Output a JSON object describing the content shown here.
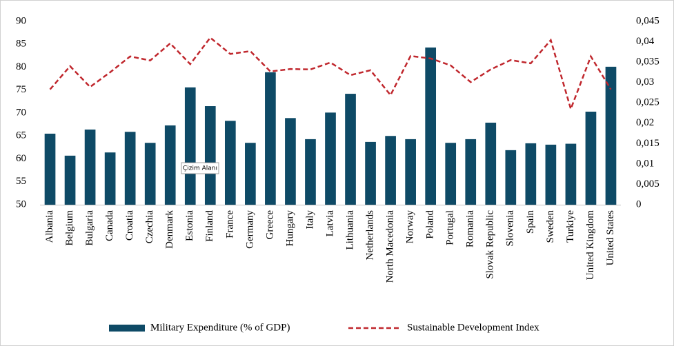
{
  "chart_data": {
    "type": "bar-line",
    "categories": [
      "Albania",
      "Belgium",
      "Bulgaria",
      "Canada",
      "Croatia",
      "Czechia",
      "Denmark",
      "Estonia",
      "Finland",
      "France",
      "Germany",
      "Greece",
      "Hungary",
      "Italy",
      "Latvia",
      "Lithuania",
      "Netherlands",
      "North Macedonia",
      "Norway",
      "Poland",
      "Portugal",
      "Romania",
      "Slovak Republic",
      "Slovenia",
      "Spain",
      "Sweden",
      "Turkiye",
      "United Kingdom",
      "United States"
    ],
    "series": [
      {
        "name": "Military Expenditure (% of GDP)",
        "type": "bar",
        "color": "#0e4a66",
        "values": [
          65.5,
          60.7,
          66.4,
          61.4,
          65.9,
          63.5,
          67.3,
          75.6,
          71.5,
          68.3,
          63.5,
          78.9,
          68.9,
          64.3,
          70.1,
          74.2,
          63.7,
          65.0,
          64.3,
          84.3,
          63.5,
          64.3,
          67.9,
          61.9,
          63.4,
          63.1,
          63.3,
          70.3,
          80.1
        ]
      },
      {
        "name": "Sustainable Development Index",
        "type": "line",
        "axis": "y2",
        "color": "#c0272d",
        "dashed": true,
        "values": [
          0.0283,
          0.034,
          0.0289,
          0.0325,
          0.0364,
          0.0354,
          0.0396,
          0.0345,
          0.041,
          0.037,
          0.0377,
          0.0327,
          0.0333,
          0.0332,
          0.0349,
          0.0318,
          0.033,
          0.0269,
          0.0365,
          0.0359,
          0.0342,
          0.0301,
          0.0332,
          0.0355,
          0.0347,
          0.0404,
          0.0235,
          0.0364,
          0.0283
        ]
      }
    ],
    "ylim": [
      50,
      90
    ],
    "yticks": [
      50,
      55,
      60,
      65,
      70,
      75,
      80,
      85,
      90
    ],
    "y2lim": [
      0,
      0.045
    ],
    "y2ticks": [
      0,
      {
        "value": 0.005,
        "label": "0,005"
      },
      {
        "value": 0.01,
        "label": "0,01"
      },
      {
        "value": 0.015,
        "label": "0,015"
      },
      {
        "value": 0.02,
        "label": "0,02"
      },
      {
        "value": 0.025,
        "label": "0,025"
      },
      {
        "value": 0.03,
        "label": "0,03"
      },
      {
        "value": 0.035,
        "label": "0,035"
      },
      {
        "value": 0.04,
        "label": "0,04"
      },
      {
        "value": 0.045,
        "label": "0,045"
      }
    ],
    "grid": false,
    "legend": "bottom",
    "annotation": "Çizim Alanı"
  }
}
